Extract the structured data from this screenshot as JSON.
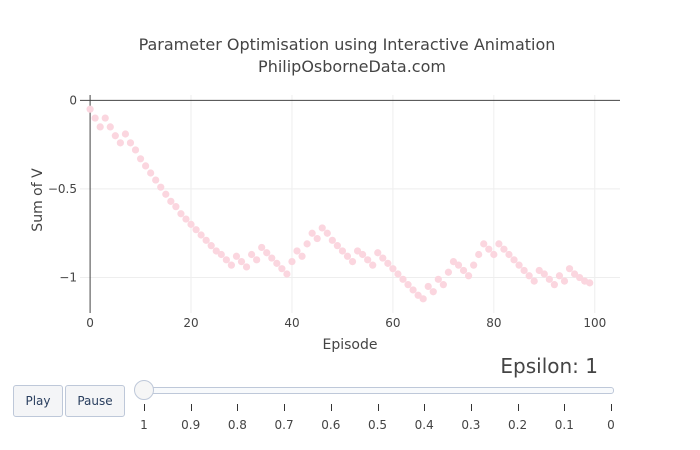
{
  "chart_data": {
    "type": "scatter",
    "title": "Parameter Optimisation using Interactive Animation",
    "subtitle": "PhilipOsborneData.com",
    "xlabel": "Episode",
    "ylabel": "Sum of V",
    "xlim": [
      -2,
      105
    ],
    "ylim": [
      -1.2,
      0.03
    ],
    "xticks": [
      0,
      20,
      40,
      60,
      80,
      100
    ],
    "xtick_labels": [
      "0",
      "20",
      "40",
      "60",
      "80",
      "100"
    ],
    "yticks": [
      0,
      -0.5,
      -1
    ],
    "ytick_labels": [
      "0",
      "−0.5",
      "−1"
    ],
    "grid": true,
    "marker_color": "#fbd6df",
    "series": [
      {
        "x": [
          0,
          1,
          2,
          3,
          4,
          5,
          6,
          7,
          8,
          9,
          10,
          11,
          12,
          13,
          14,
          15,
          16,
          17,
          18,
          19,
          20,
          21,
          22,
          23,
          24,
          25,
          26,
          27,
          28,
          29,
          30,
          31,
          32,
          33,
          34,
          35,
          36,
          37,
          38,
          39,
          40,
          41,
          42,
          43,
          44,
          45,
          46,
          47,
          48,
          49,
          50,
          51,
          52,
          53,
          54,
          55,
          56,
          57,
          58,
          59,
          60,
          61,
          62,
          63,
          64,
          65,
          66,
          67,
          68,
          69,
          70,
          71,
          72,
          73,
          74,
          75,
          76,
          77,
          78,
          79,
          80,
          81,
          82,
          83,
          84,
          85,
          86,
          87,
          88,
          89,
          90,
          91,
          92,
          93,
          94,
          95,
          96,
          97,
          98,
          99
        ],
        "y": [
          -0.05,
          -0.1,
          -0.15,
          -0.1,
          -0.15,
          -0.2,
          -0.24,
          -0.19,
          -0.24,
          -0.28,
          -0.33,
          -0.37,
          -0.41,
          -0.45,
          -0.49,
          -0.53,
          -0.57,
          -0.6,
          -0.64,
          -0.67,
          -0.7,
          -0.73,
          -0.76,
          -0.79,
          -0.82,
          -0.85,
          -0.87,
          -0.9,
          -0.93,
          -0.88,
          -0.91,
          -0.94,
          -0.87,
          -0.9,
          -0.83,
          -0.86,
          -0.89,
          -0.92,
          -0.95,
          -0.98,
          -0.91,
          -0.85,
          -0.88,
          -0.81,
          -0.75,
          -0.78,
          -0.72,
          -0.75,
          -0.79,
          -0.82,
          -0.85,
          -0.88,
          -0.91,
          -0.85,
          -0.87,
          -0.9,
          -0.93,
          -0.86,
          -0.89,
          -0.92,
          -0.95,
          -0.98,
          -1.01,
          -1.04,
          -1.07,
          -1.1,
          -1.12,
          -1.05,
          -1.08,
          -1.01,
          -1.04,
          -0.97,
          -0.91,
          -0.93,
          -0.96,
          -0.99,
          -0.93,
          -0.87,
          -0.81,
          -0.84,
          -0.87,
          -0.81,
          -0.84,
          -0.87,
          -0.9,
          -0.93,
          -0.96,
          -0.99,
          -1.02,
          -0.96,
          -0.98,
          -1.01,
          -1.04,
          -0.99,
          -1.02,
          -0.95,
          -0.98,
          -1.0,
          -1.02,
          -1.03
        ]
      }
    ]
  },
  "animation": {
    "play_label": "Play",
    "pause_label": "Pause",
    "current_label": "Epsilon: 1",
    "current_value": 1,
    "steps": [
      "1",
      "0.9",
      "0.8",
      "0.7",
      "0.6",
      "0.5",
      "0.4",
      "0.3",
      "0.2",
      "0.1",
      "0"
    ]
  }
}
